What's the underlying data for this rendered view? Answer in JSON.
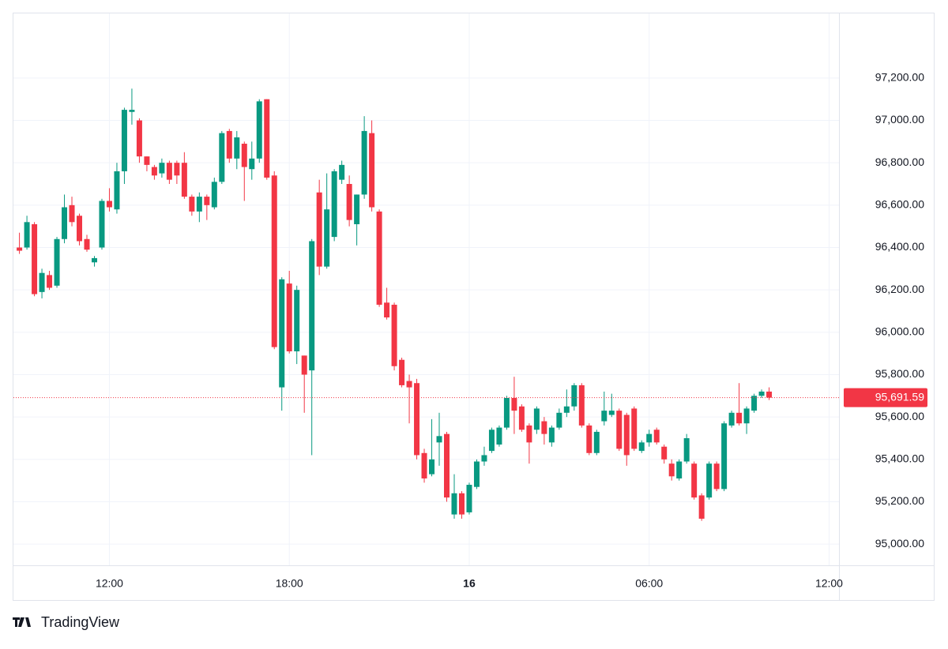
{
  "chart_data": {
    "type": "candlestick",
    "x": [
      9,
      9.25,
      9.5,
      9.75,
      10,
      10.25,
      10.5,
      10.75,
      11,
      11.25,
      11.5,
      11.75,
      12,
      12.25,
      12.5,
      12.75,
      13,
      13.25,
      13.5,
      13.75,
      14,
      14.25,
      14.5,
      14.75,
      15,
      15.25,
      15.5,
      15.75,
      16,
      16.25,
      16.5,
      16.75,
      17,
      17.25,
      17.5,
      17.75,
      18,
      18.25,
      18.5,
      18.75,
      19,
      19.25,
      19.5,
      19.75,
      20,
      20.25,
      20.5,
      20.75,
      21,
      21.25,
      21.5,
      21.75,
      22,
      22.25,
      22.5,
      22.75,
      23,
      23.25,
      23.5,
      23.75,
      24,
      24.25,
      24.5,
      24.75,
      25,
      25.25,
      25.5,
      25.75,
      26,
      26.25,
      26.5,
      26.75,
      27,
      27.25,
      27.5,
      27.75,
      28,
      28.25,
      28.5,
      28.75,
      29,
      29.25,
      29.5,
      29.75,
      30,
      30.25,
      30.5,
      30.75,
      31,
      31.25,
      31.5,
      31.75,
      32,
      32.25,
      32.5,
      32.75,
      33,
      33.25,
      33.5,
      33.75,
      34
    ],
    "open": [
      96400,
      96400,
      96510,
      96190,
      96270,
      96220,
      96440,
      96600,
      96550,
      96440,
      96330,
      96400,
      96620,
      96580,
      96760,
      97040,
      97000,
      96830,
      96780,
      96750,
      96800,
      96800,
      96800,
      96640,
      96570,
      96640,
      96590,
      96710,
      96950,
      96820,
      96890,
      96770,
      96820,
      97100,
      96740,
      95740,
      96230,
      95910,
      95890,
      95820,
      96660,
      96310,
      96450,
      96720,
      96700,
      96510,
      96650,
      96940,
      96570,
      96140,
      96130,
      95870,
      95770,
      95760,
      95430,
      95330,
      95480,
      95520,
      95140,
      95240,
      95150,
      95270,
      95390,
      95440,
      95470,
      95550,
      95690,
      95650,
      95560,
      95540,
      95580,
      95480,
      95550,
      95620,
      95650,
      95750,
      95560,
      95430,
      95580,
      95610,
      95630,
      95610,
      95640,
      95440,
      95480,
      95540,
      95460,
      95380,
      95310,
      95390,
      95380,
      95230,
      95220,
      95380,
      95260,
      95560,
      95620,
      95570,
      95630,
      95700,
      95720
    ],
    "high": [
      96470,
      96550,
      96520,
      96300,
      96290,
      96450,
      96650,
      96640,
      96560,
      96460,
      96360,
      96630,
      96680,
      96800,
      97060,
      97150,
      97010,
      96830,
      96790,
      96820,
      96810,
      96810,
      96850,
      96650,
      96660,
      96650,
      96730,
      96950,
      96960,
      96950,
      96900,
      96900,
      97100,
      97100,
      96760,
      96260,
      96290,
      96220,
      95890,
      96440,
      96720,
      96750,
      96770,
      96810,
      96740,
      96650,
      97020,
      97000,
      96580,
      96210,
      96140,
      95880,
      95800,
      95780,
      95450,
      95590,
      95620,
      95530,
      95330,
      95250,
      95290,
      95400,
      95460,
      95550,
      95560,
      95700,
      95790,
      95660,
      95570,
      95650,
      95600,
      95560,
      95640,
      95730,
      95760,
      95760,
      95570,
      95540,
      95720,
      95710,
      95640,
      95620,
      95650,
      95490,
      95540,
      95550,
      95470,
      95400,
      95400,
      95520,
      95390,
      95240,
      95390,
      95390,
      95580,
      95630,
      95760,
      95650,
      95710,
      95730,
      95740
    ],
    "low": [
      96370,
      96390,
      96170,
      96160,
      96200,
      96210,
      96420,
      96500,
      96410,
      96380,
      96310,
      96390,
      96570,
      96560,
      96700,
      96980,
      96800,
      96760,
      96720,
      96730,
      96700,
      96700,
      96630,
      96550,
      96520,
      96530,
      96580,
      96700,
      96800,
      96770,
      96620,
      96720,
      96800,
      96720,
      95920,
      95630,
      95900,
      95850,
      95620,
      95420,
      96270,
      96300,
      96430,
      96700,
      96500,
      96410,
      96630,
      96570,
      96120,
      96060,
      95820,
      95740,
      95570,
      95400,
      95290,
      95320,
      95370,
      95200,
      95120,
      95120,
      95140,
      95260,
      95370,
      95430,
      95460,
      95540,
      95520,
      95530,
      95380,
      95520,
      95470,
      95460,
      95540,
      95600,
      95630,
      95550,
      95420,
      95420,
      95560,
      95600,
      95440,
      95370,
      95440,
      95430,
      95460,
      95470,
      95380,
      95300,
      95300,
      95380,
      95210,
      95110,
      95210,
      95250,
      95250,
      95550,
      95560,
      95520,
      95620,
      95690,
      95680
    ],
    "close": [
      96385,
      96520,
      96180,
      96280,
      96210,
      96440,
      96590,
      96520,
      96430,
      96390,
      96350,
      96620,
      96590,
      96760,
      97050,
      97050,
      96830,
      96790,
      96740,
      96800,
      96720,
      96740,
      96640,
      96570,
      96640,
      96600,
      96710,
      96940,
      96820,
      96920,
      96780,
      96820,
      97090,
      96730,
      95930,
      96250,
      95910,
      96200,
      95800,
      96430,
      96310,
      96580,
      96760,
      96790,
      96530,
      96650,
      96950,
      96590,
      96130,
      96070,
      95840,
      95750,
      95740,
      95420,
      95310,
      95400,
      95510,
      95220,
      95240,
      95140,
      95280,
      95390,
      95420,
      95540,
      95550,
      95690,
      95630,
      95540,
      95480,
      95640,
      95520,
      95550,
      95620,
      95650,
      95750,
      95560,
      95430,
      95530,
      95630,
      95630,
      95450,
      95420,
      95450,
      95480,
      95520,
      95480,
      95400,
      95320,
      95390,
      95500,
      95220,
      95120,
      95380,
      95260,
      95570,
      95620,
      95570,
      95640,
      95700,
      95720,
      95691.59
    ],
    "up_color": "#089981",
    "down_color": "#f23645",
    "xlim": [
      8.8,
      36.33
    ],
    "ylim": [
      94900,
      97505
    ],
    "xticks": [
      {
        "value": 12,
        "label": "12:00"
      },
      {
        "value": 18,
        "label": "18:00"
      },
      {
        "value": 24,
        "label": "16"
      },
      {
        "value": 30,
        "label": "06:00"
      },
      {
        "value": 36,
        "label": "12:00"
      }
    ],
    "yticks": [
      {
        "value": 95000,
        "label": "95,000.00"
      },
      {
        "value": 95200,
        "label": "95,200.00"
      },
      {
        "value": 95400,
        "label": "95,400.00"
      },
      {
        "value": 95600,
        "label": "95,600.00"
      },
      {
        "value": 95800,
        "label": "95,800.00"
      },
      {
        "value": 96000,
        "label": "96,000.00"
      },
      {
        "value": 96200,
        "label": "96,200.00"
      },
      {
        "value": 96400,
        "label": "96,400.00"
      },
      {
        "value": 96600,
        "label": "96,600.00"
      },
      {
        "value": 96800,
        "label": "96,800.00"
      },
      {
        "value": 97000,
        "label": "97,000.00"
      },
      {
        "value": 97200,
        "label": "97,200.00"
      }
    ],
    "last_price": {
      "value": 95691.59,
      "label": "95,691.59"
    },
    "grid": true
  },
  "branding": "TradingView"
}
